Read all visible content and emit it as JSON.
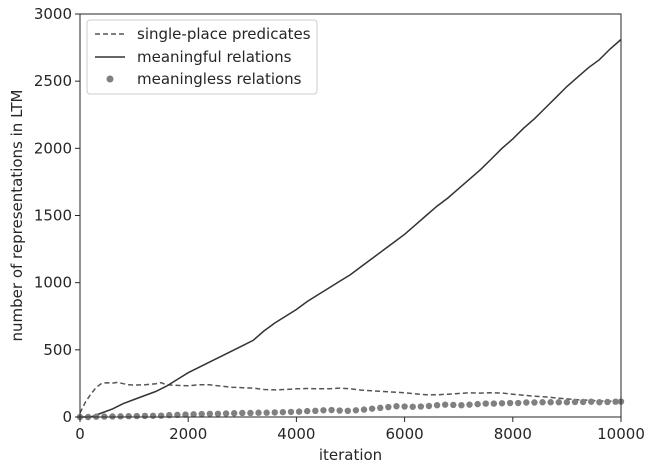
{
  "chart_data": {
    "type": "line",
    "title": "",
    "xlabel": "iteration",
    "ylabel": "number of representations in LTM",
    "xlim": [
      0,
      10000
    ],
    "ylim": [
      0,
      3000
    ],
    "xticks": [
      0,
      2000,
      4000,
      6000,
      8000,
      10000
    ],
    "yticks": [
      0,
      500,
      1000,
      1500,
      2000,
      2500,
      3000
    ],
    "grid": false,
    "legend_position": "top-left",
    "series": [
      {
        "name": "single-place predicates",
        "style": "dashed",
        "color": "#555555",
        "x": [
          0,
          100,
          200,
          300,
          400,
          500,
          600,
          700,
          800,
          900,
          1000,
          1200,
          1400,
          1500,
          1600,
          1800,
          2000,
          2200,
          2400,
          2600,
          2800,
          3000,
          3200,
          3400,
          3600,
          3800,
          4000,
          4200,
          4400,
          4600,
          4800,
          5000,
          5200,
          5400,
          5600,
          5800,
          6000,
          6200,
          6400,
          6600,
          6800,
          7000,
          7200,
          7400,
          7600,
          7800,
          8000,
          8200,
          8400,
          8600,
          8800,
          9000,
          9200,
          9400,
          9600,
          9800,
          10000
        ],
        "y": [
          30,
          110,
          170,
          220,
          250,
          255,
          252,
          258,
          248,
          240,
          238,
          240,
          248,
          255,
          240,
          235,
          232,
          240,
          240,
          230,
          222,
          218,
          215,
          205,
          202,
          205,
          210,
          212,
          210,
          210,
          215,
          210,
          200,
          195,
          190,
          185,
          180,
          172,
          165,
          165,
          170,
          175,
          180,
          178,
          180,
          178,
          170,
          162,
          155,
          150,
          142,
          135,
          128,
          125,
          120,
          118,
          115
        ]
      },
      {
        "name": "meaningful relations",
        "style": "solid",
        "color": "#333333",
        "x": [
          0,
          200,
          400,
          600,
          800,
          1000,
          1200,
          1400,
          1600,
          1800,
          2000,
          2200,
          2400,
          2600,
          2800,
          3000,
          3200,
          3400,
          3600,
          3800,
          4000,
          4200,
          4400,
          4600,
          4800,
          5000,
          5200,
          5400,
          5600,
          5800,
          6000,
          6200,
          6400,
          6600,
          6800,
          7000,
          7200,
          7400,
          7600,
          7800,
          8000,
          8200,
          8400,
          8600,
          8800,
          9000,
          9200,
          9400,
          9600,
          9800,
          10000
        ],
        "y": [
          0,
          0,
          30,
          60,
          100,
          130,
          160,
          190,
          230,
          280,
          330,
          370,
          410,
          450,
          490,
          530,
          570,
          640,
          700,
          750,
          800,
          860,
          910,
          960,
          1010,
          1060,
          1120,
          1180,
          1240,
          1300,
          1360,
          1430,
          1500,
          1570,
          1630,
          1700,
          1770,
          1840,
          1920,
          2000,
          2070,
          2150,
          2220,
          2300,
          2380,
          2460,
          2530,
          2600,
          2660,
          2740,
          2810
        ]
      },
      {
        "name": "meaningless relations",
        "style": "dots",
        "color": "#808080",
        "x": [
          0,
          150,
          300,
          450,
          600,
          750,
          900,
          1050,
          1200,
          1350,
          1500,
          1650,
          1800,
          1950,
          2100,
          2250,
          2400,
          2550,
          2700,
          2850,
          3000,
          3150,
          3300,
          3450,
          3600,
          3750,
          3900,
          4050,
          4200,
          4350,
          4500,
          4650,
          4800,
          4950,
          5100,
          5250,
          5400,
          5550,
          5700,
          5850,
          6000,
          6150,
          6300,
          6450,
          6600,
          6750,
          6900,
          7050,
          7200,
          7350,
          7500,
          7650,
          7800,
          7950,
          8100,
          8250,
          8400,
          8550,
          8700,
          8850,
          9000,
          9150,
          9300,
          9450,
          9600,
          9750,
          9900,
          10000
        ],
        "y": [
          0,
          0,
          2,
          3,
          4,
          5,
          6,
          7,
          8,
          9,
          10,
          14,
          16,
          18,
          20,
          22,
          24,
          24,
          26,
          28,
          30,
          30,
          32,
          32,
          34,
          36,
          38,
          40,
          44,
          46,
          50,
          52,
          48,
          46,
          50,
          55,
          62,
          68,
          74,
          80,
          78,
          76,
          78,
          82,
          88,
          92,
          90,
          88,
          92,
          96,
          100,
          100,
          102,
          104,
          104,
          108,
          108,
          110,
          110,
          110,
          110,
          112,
          112,
          114,
          110,
          112,
          114,
          115
        ]
      }
    ]
  }
}
